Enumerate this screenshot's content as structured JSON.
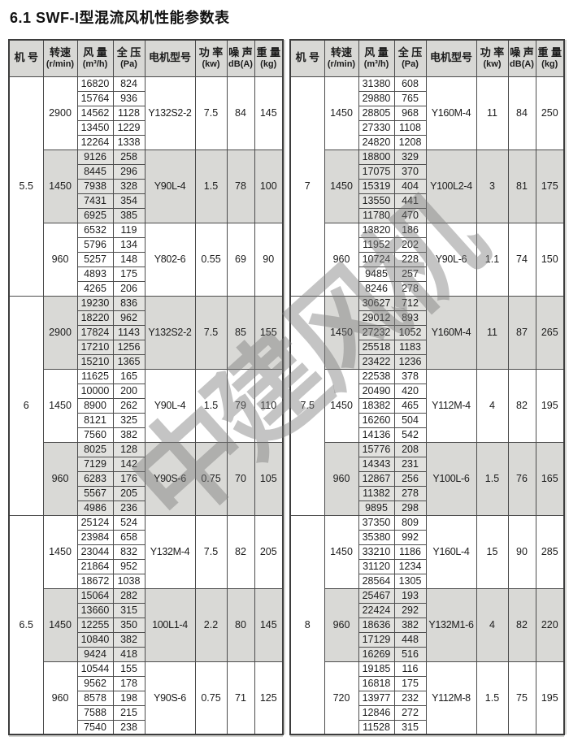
{
  "page": {
    "title": "6.1 SWF-I型混流风机性能参数表",
    "watermark": "中建风机"
  },
  "colors": {
    "band_shade": "#d9d9d6",
    "band_value_shade": "#e2e2df",
    "header_shade": "#d8d8d5",
    "border": "#4c4c4c"
  },
  "table_headers": [
    {
      "line1": "机 号",
      "line2": ""
    },
    {
      "line1": "转速",
      "line2": "(r/min)"
    },
    {
      "line1": "风 量",
      "line2": "(m³/h)"
    },
    {
      "line1": "全 压",
      "line2": "(Pa)"
    },
    {
      "line1": "电机型号",
      "line2": ""
    },
    {
      "line1": "功 率",
      "line2": "(kw)"
    },
    {
      "line1": "噪 声",
      "line2": "dB(A)"
    },
    {
      "line1": "重 量",
      "line2": "(kg)"
    }
  ],
  "tables": [
    {
      "machines": [
        {
          "size": "5.5",
          "bands": [
            {
              "speed": "2900",
              "motor": "Y132S2-2",
              "power": "7.5",
              "noise": "84",
              "weight": "145",
              "rows": [
                [
                  "16820",
                  "824"
                ],
                [
                  "15764",
                  "936"
                ],
                [
                  "14562",
                  "1128"
                ],
                [
                  "13450",
                  "1229"
                ],
                [
                  "12264",
                  "1338"
                ]
              ]
            },
            {
              "speed": "1450",
              "motor": "Y90L-4",
              "power": "1.5",
              "noise": "78",
              "weight": "100",
              "rows": [
                [
                  "9126",
                  "258"
                ],
                [
                  "8445",
                  "296"
                ],
                [
                  "7938",
                  "328"
                ],
                [
                  "7431",
                  "354"
                ],
                [
                  "6925",
                  "385"
                ]
              ]
            },
            {
              "speed": "960",
              "motor": "Y802-6",
              "power": "0.55",
              "noise": "69",
              "weight": "90",
              "rows": [
                [
                  "6532",
                  "119"
                ],
                [
                  "5796",
                  "134"
                ],
                [
                  "5257",
                  "148"
                ],
                [
                  "4893",
                  "175"
                ],
                [
                  "4265",
                  "206"
                ]
              ]
            }
          ]
        },
        {
          "size": "6",
          "bands": [
            {
              "speed": "2900",
              "motor": "Y132S2-2",
              "power": "7.5",
              "noise": "85",
              "weight": "155",
              "rows": [
                [
                  "19230",
                  "836"
                ],
                [
                  "18220",
                  "962"
                ],
                [
                  "17824",
                  "1143"
                ],
                [
                  "17210",
                  "1256"
                ],
                [
                  "15210",
                  "1365"
                ]
              ]
            },
            {
              "speed": "1450",
              "motor": "Y90L-4",
              "power": "1.5",
              "noise": "79",
              "weight": "110",
              "rows": [
                [
                  "11625",
                  "165"
                ],
                [
                  "10000",
                  "200"
                ],
                [
                  "8900",
                  "262"
                ],
                [
                  "8121",
                  "325"
                ],
                [
                  "7560",
                  "382"
                ]
              ]
            },
            {
              "speed": "960",
              "motor": "Y90S-6",
              "power": "0.75",
              "noise": "70",
              "weight": "105",
              "rows": [
                [
                  "8025",
                  "128"
                ],
                [
                  "7129",
                  "142"
                ],
                [
                  "6283",
                  "176"
                ],
                [
                  "5567",
                  "205"
                ],
                [
                  "4986",
                  "236"
                ]
              ]
            }
          ]
        },
        {
          "size": "6.5",
          "bands": [
            {
              "speed": "1450",
              "motor": "Y132M-4",
              "power": "7.5",
              "noise": "82",
              "weight": "205",
              "rows": [
                [
                  "25124",
                  "524"
                ],
                [
                  "23984",
                  "658"
                ],
                [
                  "23044",
                  "832"
                ],
                [
                  "21864",
                  "952"
                ],
                [
                  "18672",
                  "1038"
                ]
              ]
            },
            {
              "speed": "1450",
              "motor": "100L1-4",
              "power": "2.2",
              "noise": "80",
              "weight": "145",
              "rows": [
                [
                  "15064",
                  "282"
                ],
                [
                  "13660",
                  "315"
                ],
                [
                  "12255",
                  "350"
                ],
                [
                  "10840",
                  "382"
                ],
                [
                  "9424",
                  "418"
                ]
              ]
            },
            {
              "speed": "960",
              "motor": "Y90S-6",
              "power": "0.75",
              "noise": "71",
              "weight": "125",
              "rows": [
                [
                  "10544",
                  "155"
                ],
                [
                  "9562",
                  "178"
                ],
                [
                  "8578",
                  "198"
                ],
                [
                  "7588",
                  "215"
                ],
                [
                  "7540",
                  "238"
                ]
              ]
            }
          ]
        }
      ]
    },
    {
      "machines": [
        {
          "size": "7",
          "bands": [
            {
              "speed": "1450",
              "motor": "Y160M-4",
              "power": "11",
              "noise": "84",
              "weight": "250",
              "rows": [
                [
                  "31380",
                  "608"
                ],
                [
                  "29880",
                  "765"
                ],
                [
                  "28805",
                  "968"
                ],
                [
                  "27330",
                  "1108"
                ],
                [
                  "24820",
                  "1208"
                ]
              ]
            },
            {
              "speed": "1450",
              "motor": "Y100L2-4",
              "power": "3",
              "noise": "81",
              "weight": "175",
              "rows": [
                [
                  "18800",
                  "329"
                ],
                [
                  "17075",
                  "370"
                ],
                [
                  "15319",
                  "404"
                ],
                [
                  "13550",
                  "441"
                ],
                [
                  "11780",
                  "470"
                ]
              ]
            },
            {
              "speed": "960",
              "motor": "Y90L-6",
              "power": "1.1",
              "noise": "74",
              "weight": "150",
              "rows": [
                [
                  "13820",
                  "186"
                ],
                [
                  "11952",
                  "202"
                ],
                [
                  "10724",
                  "228"
                ],
                [
                  "9485",
                  "257"
                ],
                [
                  "8246",
                  "278"
                ]
              ]
            }
          ]
        },
        {
          "size": "7.5",
          "bands": [
            {
              "speed": "1450",
              "motor": "Y160M-4",
              "power": "11",
              "noise": "87",
              "weight": "265",
              "rows": [
                [
                  "30627",
                  "712"
                ],
                [
                  "29012",
                  "893"
                ],
                [
                  "27232",
                  "1052"
                ],
                [
                  "25518",
                  "1183"
                ],
                [
                  "23422",
                  "1236"
                ]
              ]
            },
            {
              "speed": "1450",
              "motor": "Y112M-4",
              "power": "4",
              "noise": "82",
              "weight": "195",
              "rows": [
                [
                  "22538",
                  "378"
                ],
                [
                  "20490",
                  "420"
                ],
                [
                  "18382",
                  "465"
                ],
                [
                  "16260",
                  "504"
                ],
                [
                  "14136",
                  "542"
                ]
              ]
            },
            {
              "speed": "960",
              "motor": "Y100L-6",
              "power": "1.5",
              "noise": "76",
              "weight": "165",
              "rows": [
                [
                  "15776",
                  "208"
                ],
                [
                  "14343",
                  "231"
                ],
                [
                  "12867",
                  "256"
                ],
                [
                  "11382",
                  "278"
                ],
                [
                  "9895",
                  "298"
                ]
              ]
            }
          ]
        },
        {
          "size": "8",
          "bands": [
            {
              "speed": "1450",
              "motor": "Y160L-4",
              "power": "15",
              "noise": "90",
              "weight": "285",
              "rows": [
                [
                  "37350",
                  "809"
                ],
                [
                  "35380",
                  "992"
                ],
                [
                  "33210",
                  "1186"
                ],
                [
                  "31120",
                  "1234"
                ],
                [
                  "28564",
                  "1305"
                ]
              ]
            },
            {
              "speed": "960",
              "motor": "Y132M1-6",
              "power": "4",
              "noise": "82",
              "weight": "220",
              "rows": [
                [
                  "25467",
                  "193"
                ],
                [
                  "22424",
                  "292"
                ],
                [
                  "18636",
                  "382"
                ],
                [
                  "17129",
                  "448"
                ],
                [
                  "16269",
                  "516"
                ]
              ]
            },
            {
              "speed": "720",
              "motor": "Y112M-8",
              "power": "1.5",
              "noise": "75",
              "weight": "195",
              "rows": [
                [
                  "19185",
                  "116"
                ],
                [
                  "16818",
                  "175"
                ],
                [
                  "13977",
                  "232"
                ],
                [
                  "12846",
                  "272"
                ],
                [
                  "11528",
                  "315"
                ]
              ]
            }
          ]
        }
      ]
    }
  ]
}
